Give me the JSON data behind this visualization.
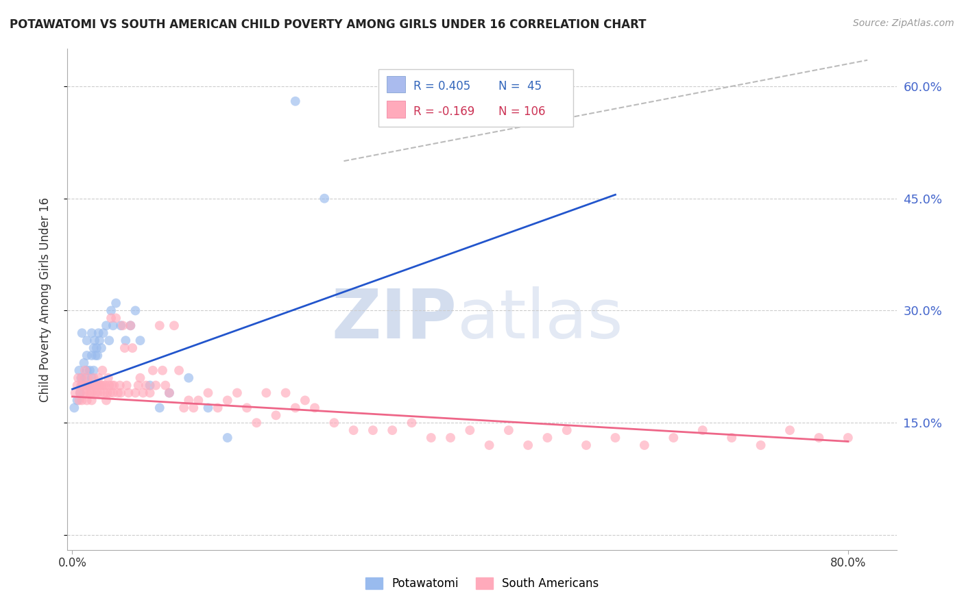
{
  "title": "POTAWATOMI VS SOUTH AMERICAN CHILD POVERTY AMONG GIRLS UNDER 16 CORRELATION CHART",
  "source": "Source: ZipAtlas.com",
  "ylabel": "Child Poverty Among Girls Under 16",
  "ylim": [
    -0.02,
    0.65
  ],
  "xlim": [
    -0.005,
    0.85
  ],
  "yticks": [
    0.0,
    0.15,
    0.3,
    0.45,
    0.6
  ],
  "ytick_labels": [
    "",
    "15.0%",
    "30.0%",
    "45.0%",
    "60.0%"
  ],
  "grid_color": "#cccccc",
  "background": "#ffffff",
  "potawatomi_color": "#99bbee",
  "south_american_color": "#ffaabb",
  "blue_line_color": "#2255cc",
  "pink_line_color": "#ee6688",
  "gray_dash_color": "#bbbbbb",
  "blue_line_x0": 0.0,
  "blue_line_y0": 0.195,
  "blue_line_x1": 0.56,
  "blue_line_y1": 0.455,
  "pink_line_x0": 0.0,
  "pink_line_y0": 0.185,
  "pink_line_x1": 0.8,
  "pink_line_y1": 0.125,
  "gray_line_x0": 0.28,
  "gray_line_y0": 0.5,
  "gray_line_x1": 0.82,
  "gray_line_y1": 0.635,
  "potawatomi_x": [
    0.002,
    0.005,
    0.007,
    0.008,
    0.009,
    0.01,
    0.01,
    0.012,
    0.013,
    0.015,
    0.015,
    0.015,
    0.017,
    0.018,
    0.02,
    0.02,
    0.02,
    0.022,
    0.022,
    0.023,
    0.024,
    0.025,
    0.026,
    0.027,
    0.028,
    0.03,
    0.032,
    0.035,
    0.038,
    0.04,
    0.042,
    0.045,
    0.05,
    0.055,
    0.06,
    0.065,
    0.07,
    0.08,
    0.09,
    0.1,
    0.12,
    0.14,
    0.16,
    0.23,
    0.26
  ],
  "potawatomi_y": [
    0.17,
    0.18,
    0.22,
    0.19,
    0.21,
    0.2,
    0.27,
    0.23,
    0.21,
    0.22,
    0.24,
    0.26,
    0.2,
    0.22,
    0.21,
    0.24,
    0.27,
    0.22,
    0.25,
    0.26,
    0.24,
    0.25,
    0.24,
    0.27,
    0.26,
    0.25,
    0.27,
    0.28,
    0.26,
    0.3,
    0.28,
    0.31,
    0.28,
    0.26,
    0.28,
    0.3,
    0.26,
    0.2,
    0.17,
    0.19,
    0.21,
    0.17,
    0.13,
    0.58,
    0.45
  ],
  "south_american_x": [
    0.003,
    0.005,
    0.006,
    0.007,
    0.008,
    0.009,
    0.01,
    0.01,
    0.011,
    0.012,
    0.013,
    0.014,
    0.015,
    0.015,
    0.016,
    0.017,
    0.018,
    0.019,
    0.02,
    0.02,
    0.021,
    0.022,
    0.023,
    0.024,
    0.025,
    0.026,
    0.027,
    0.028,
    0.029,
    0.03,
    0.031,
    0.032,
    0.033,
    0.034,
    0.035,
    0.036,
    0.037,
    0.038,
    0.039,
    0.04,
    0.041,
    0.042,
    0.043,
    0.045,
    0.047,
    0.049,
    0.05,
    0.052,
    0.054,
    0.056,
    0.058,
    0.06,
    0.062,
    0.065,
    0.068,
    0.07,
    0.073,
    0.076,
    0.08,
    0.083,
    0.086,
    0.09,
    0.093,
    0.096,
    0.1,
    0.105,
    0.11,
    0.115,
    0.12,
    0.125,
    0.13,
    0.14,
    0.15,
    0.16,
    0.17,
    0.18,
    0.19,
    0.2,
    0.21,
    0.22,
    0.23,
    0.24,
    0.25,
    0.27,
    0.29,
    0.31,
    0.33,
    0.35,
    0.37,
    0.39,
    0.41,
    0.43,
    0.45,
    0.47,
    0.49,
    0.51,
    0.53,
    0.56,
    0.59,
    0.62,
    0.65,
    0.68,
    0.71,
    0.74,
    0.77,
    0.8
  ],
  "south_american_y": [
    0.19,
    0.2,
    0.21,
    0.18,
    0.19,
    0.2,
    0.21,
    0.18,
    0.2,
    0.19,
    0.22,
    0.2,
    0.19,
    0.18,
    0.21,
    0.2,
    0.19,
    0.2,
    0.18,
    0.19,
    0.2,
    0.21,
    0.2,
    0.19,
    0.2,
    0.19,
    0.21,
    0.2,
    0.19,
    0.2,
    0.22,
    0.2,
    0.19,
    0.2,
    0.18,
    0.19,
    0.21,
    0.2,
    0.19,
    0.29,
    0.2,
    0.19,
    0.2,
    0.29,
    0.19,
    0.2,
    0.19,
    0.28,
    0.25,
    0.2,
    0.19,
    0.28,
    0.25,
    0.19,
    0.2,
    0.21,
    0.19,
    0.2,
    0.19,
    0.22,
    0.2,
    0.28,
    0.22,
    0.2,
    0.19,
    0.28,
    0.22,
    0.17,
    0.18,
    0.17,
    0.18,
    0.19,
    0.17,
    0.18,
    0.19,
    0.17,
    0.15,
    0.19,
    0.16,
    0.19,
    0.17,
    0.18,
    0.17,
    0.15,
    0.14,
    0.14,
    0.14,
    0.15,
    0.13,
    0.13,
    0.14,
    0.12,
    0.14,
    0.12,
    0.13,
    0.14,
    0.12,
    0.13,
    0.12,
    0.13,
    0.14,
    0.13,
    0.12,
    0.14,
    0.13,
    0.13
  ]
}
